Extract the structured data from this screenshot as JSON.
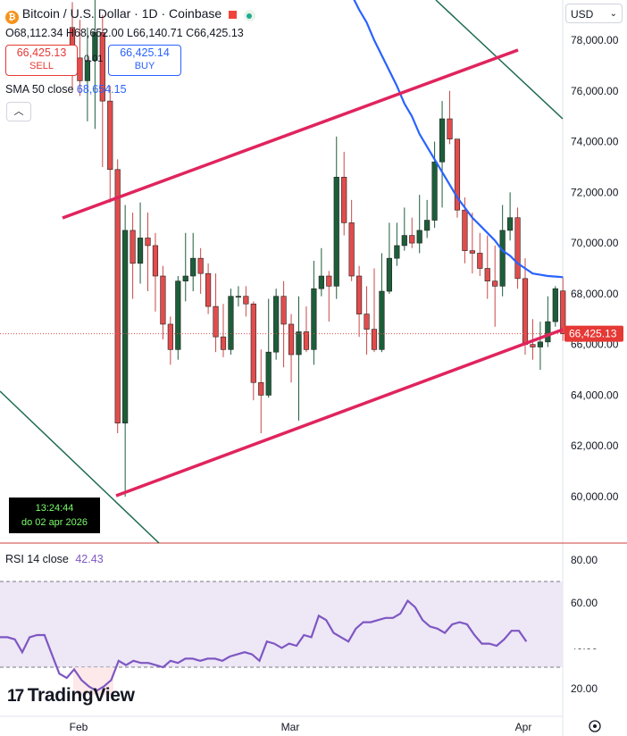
{
  "header": {
    "title": "Bitcoin / U.S. Dollar · 1D · Coinbase",
    "ohlc": {
      "o_label": "O",
      "o": "68,112.34",
      "h_label": "H",
      "h": "68,652.00",
      "l_label": "L",
      "l": "66,140.71",
      "c_label": "C",
      "c": "66,425.13"
    },
    "sell": {
      "price": "66,425.13",
      "label": "SELL"
    },
    "spread": "0.01",
    "buy": {
      "price": "66,425.14",
      "label": "BUY"
    },
    "currency": "USD",
    "indicator": {
      "name": "SMA 50 close",
      "value": "68,654.15"
    }
  },
  "clock": {
    "time": "13:24:44",
    "date": "do 02 apr 2026"
  },
  "rsi": {
    "label": "RSI 14 close",
    "value": "42.43"
  },
  "brand": "TradingView",
  "colors": {
    "up": "#1d5e3a",
    "down": "#e24c4c",
    "sma": "#2962ff",
    "channel": "#e0245e",
    "trend": "#1e6b4e",
    "rsi": "#7e57c2",
    "bg_band": "#ede7f6"
  },
  "chart_data": [
    {
      "type": "candlestick",
      "title": "Bitcoin / U.S. Dollar · 1D · Coinbase",
      "currency": "USD",
      "price_axis_ticks": [
        "60,000.00",
        "62,000.00",
        "64,000.00",
        "66,000.00",
        "68,000.00",
        "70,000.00",
        "72,000.00",
        "74,000.00",
        "76,000.00",
        "78,000.00"
      ],
      "ylim": [
        58300,
        79500
      ],
      "x_ticks": [
        "Feb",
        "Mar",
        "Apr"
      ],
      "last_price_label": "66,425.13",
      "candles": [
        {
          "o": 78500,
          "h": 79500,
          "l": 76000,
          "c": 77300
        },
        {
          "o": 77300,
          "h": 78800,
          "l": 75800,
          "c": 76400
        },
        {
          "o": 76400,
          "h": 78500,
          "l": 74800,
          "c": 77200
        },
        {
          "o": 77200,
          "h": 79600,
          "l": 74500,
          "c": 78300
        },
        {
          "o": 78300,
          "h": 79000,
          "l": 73000,
          "c": 75600
        },
        {
          "o": 75600,
          "h": 76200,
          "l": 71600,
          "c": 72900
        },
        {
          "o": 72900,
          "h": 73300,
          "l": 62500,
          "c": 62900
        },
        {
          "o": 62900,
          "h": 71500,
          "l": 60000,
          "c": 70500
        },
        {
          "o": 70500,
          "h": 71200,
          "l": 67800,
          "c": 69200
        },
        {
          "o": 69200,
          "h": 71600,
          "l": 68400,
          "c": 70200
        },
        {
          "o": 70200,
          "h": 71200,
          "l": 68100,
          "c": 69900
        },
        {
          "o": 69900,
          "h": 70400,
          "l": 67300,
          "c": 68700
        },
        {
          "o": 68700,
          "h": 69100,
          "l": 66200,
          "c": 66800
        },
        {
          "o": 66800,
          "h": 67100,
          "l": 65200,
          "c": 65800
        },
        {
          "o": 65800,
          "h": 68700,
          "l": 65400,
          "c": 68500
        },
        {
          "o": 68500,
          "h": 70400,
          "l": 67700,
          "c": 68700
        },
        {
          "o": 68700,
          "h": 70400,
          "l": 68100,
          "c": 69400
        },
        {
          "o": 69400,
          "h": 69800,
          "l": 68000,
          "c": 68800
        },
        {
          "o": 68800,
          "h": 69200,
          "l": 67200,
          "c": 67500
        },
        {
          "o": 67500,
          "h": 68800,
          "l": 65700,
          "c": 66300
        },
        {
          "o": 66300,
          "h": 67600,
          "l": 65500,
          "c": 65800
        },
        {
          "o": 65800,
          "h": 68200,
          "l": 65600,
          "c": 67900
        },
        {
          "o": 67900,
          "h": 68300,
          "l": 67500,
          "c": 67900
        },
        {
          "o": 67900,
          "h": 68300,
          "l": 67100,
          "c": 67600
        },
        {
          "o": 67600,
          "h": 67700,
          "l": 63800,
          "c": 64500
        },
        {
          "o": 64500,
          "h": 65800,
          "l": 62500,
          "c": 64000
        },
        {
          "o": 64000,
          "h": 67800,
          "l": 63900,
          "c": 65700
        },
        {
          "o": 65700,
          "h": 68200,
          "l": 65400,
          "c": 67900
        },
        {
          "o": 67900,
          "h": 68500,
          "l": 65100,
          "c": 66800
        },
        {
          "o": 66800,
          "h": 67200,
          "l": 64500,
          "c": 65600
        },
        {
          "o": 65600,
          "h": 67900,
          "l": 63000,
          "c": 66500
        },
        {
          "o": 66500,
          "h": 67500,
          "l": 65700,
          "c": 65800
        },
        {
          "o": 65800,
          "h": 69300,
          "l": 65200,
          "c": 68200
        },
        {
          "o": 68200,
          "h": 69800,
          "l": 67900,
          "c": 68700
        },
        {
          "o": 68700,
          "h": 68900,
          "l": 66900,
          "c": 68300
        },
        {
          "o": 68300,
          "h": 74200,
          "l": 67800,
          "c": 72600
        },
        {
          "o": 72600,
          "h": 73600,
          "l": 70300,
          "c": 70800
        },
        {
          "o": 70800,
          "h": 71700,
          "l": 68500,
          "c": 68700
        },
        {
          "o": 68700,
          "h": 69100,
          "l": 66300,
          "c": 67200
        },
        {
          "o": 67200,
          "h": 68300,
          "l": 65600,
          "c": 66600
        },
        {
          "o": 66600,
          "h": 69000,
          "l": 65700,
          "c": 65800
        },
        {
          "o": 65800,
          "h": 69600,
          "l": 65700,
          "c": 68100
        },
        {
          "o": 68100,
          "h": 70800,
          "l": 68000,
          "c": 69400
        },
        {
          "o": 69400,
          "h": 70800,
          "l": 69100,
          "c": 69900
        },
        {
          "o": 69900,
          "h": 71400,
          "l": 69700,
          "c": 70300
        },
        {
          "o": 70300,
          "h": 71000,
          "l": 69800,
          "c": 70000
        },
        {
          "o": 70000,
          "h": 71900,
          "l": 69600,
          "c": 70500
        },
        {
          "o": 70500,
          "h": 71700,
          "l": 70200,
          "c": 70900
        },
        {
          "o": 70900,
          "h": 74000,
          "l": 70600,
          "c": 73200
        },
        {
          "o": 73200,
          "h": 75600,
          "l": 71400,
          "c": 74900
        },
        {
          "o": 74900,
          "h": 76000,
          "l": 73900,
          "c": 74100
        },
        {
          "o": 74100,
          "h": 74100,
          "l": 71000,
          "c": 71300
        },
        {
          "o": 71300,
          "h": 71800,
          "l": 69200,
          "c": 69700
        },
        {
          "o": 69700,
          "h": 71200,
          "l": 68800,
          "c": 69600
        },
        {
          "o": 69600,
          "h": 70400,
          "l": 68700,
          "c": 69000
        },
        {
          "o": 69000,
          "h": 70300,
          "l": 67800,
          "c": 68500
        },
        {
          "o": 68500,
          "h": 69900,
          "l": 66700,
          "c": 68300
        },
        {
          "o": 68300,
          "h": 71500,
          "l": 67900,
          "c": 70500
        },
        {
          "o": 70500,
          "h": 72000,
          "l": 70100,
          "c": 71000
        },
        {
          "o": 71000,
          "h": 71400,
          "l": 68200,
          "c": 68600
        },
        {
          "o": 68600,
          "h": 69400,
          "l": 65600,
          "c": 66000
        },
        {
          "o": 66000,
          "h": 67000,
          "l": 65400,
          "c": 65900
        },
        {
          "o": 65900,
          "h": 66900,
          "l": 65000,
          "c": 66100
        },
        {
          "o": 66100,
          "h": 67900,
          "l": 65900,
          "c": 66900
        },
        {
          "o": 66900,
          "h": 68300,
          "l": 66700,
          "c": 68200
        },
        {
          "o": 68112,
          "h": 68652,
          "l": 66141,
          "c": 66425
        }
      ],
      "sma50": [
        null,
        null,
        null,
        null,
        null,
        null,
        null,
        null,
        null,
        null,
        null,
        null,
        null,
        null,
        null,
        null,
        null,
        null,
        null,
        null,
        80800,
        80300,
        79800,
        79200,
        78700,
        78000,
        77400,
        76800,
        76200,
        75500,
        75000,
        74300,
        73800,
        73300,
        72800,
        72300,
        71800,
        71400,
        71000,
        70700,
        70400,
        70100,
        69700,
        69500,
        69200,
        69000,
        68800,
        68750,
        68700,
        68680,
        68654
      ],
      "channel_upper": {
        "start": {
          "i": 8,
          "price": 71000
        },
        "end": {
          "i": 70,
          "price": 77600
        }
      },
      "channel_lower": {
        "start": {
          "i": 8,
          "price": 60000
        },
        "end": {
          "i": 71,
          "price": 66000
        }
      }
    },
    {
      "type": "line",
      "title": "RSI 14 close",
      "y_ticks": [
        "20.00",
        "40.00",
        "60.00",
        "80.00"
      ],
      "ylim": [
        15,
        82
      ],
      "band": [
        30,
        70
      ],
      "values": [
        44,
        44,
        43,
        37,
        44,
        45,
        45,
        36,
        27,
        25,
        29,
        24,
        21,
        19,
        21,
        24,
        33,
        31,
        33,
        32,
        32,
        31,
        30,
        33,
        32,
        34,
        34,
        33,
        34,
        34,
        33,
        35,
        36,
        37,
        36,
        33,
        42,
        41,
        39,
        41,
        40,
        45,
        44,
        54,
        52,
        46,
        44,
        42,
        48,
        51,
        51,
        52,
        53,
        53,
        55,
        61,
        58,
        52,
        49,
        48,
        46,
        50,
        51,
        50,
        45,
        41,
        41,
        40,
        43,
        47,
        47,
        42
      ]
    }
  ]
}
